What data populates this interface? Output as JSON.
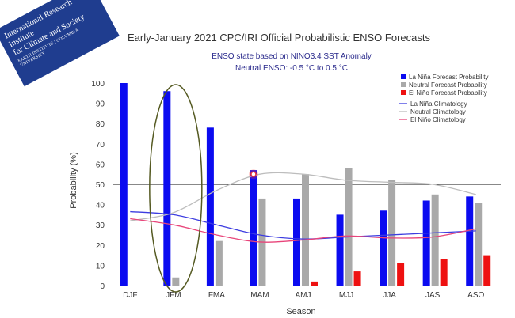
{
  "logo": {
    "line1": "International Research Institute",
    "line2": "for Climate and Society",
    "line3": "EARTH INSTITUTE | COLUMBIA UNIVERSITY"
  },
  "colors": {
    "la_nina": "#0b0bf0",
    "neutral": "#a9a9a9",
    "el_nino": "#ee1111",
    "la_nina_clim": "#3c3ce0",
    "neutral_clim": "#bdbdbd",
    "el_nino_clim": "#e8457a",
    "ellipse": "#555a22"
  },
  "chart_data": {
    "type": "bar",
    "title": "Early-January 2021 CPC/IRI Official Probabilistic ENSO Forecasts",
    "subtitle_1": "ENSO state based on NINO3.4 SST Anomaly",
    "subtitle_2": "Neutral ENSO: -0.5 °C to 0.5 °C",
    "xlabel": "Season",
    "ylabel": "Probability (%)",
    "ylim": [
      0,
      100
    ],
    "yticks": [
      0,
      10,
      20,
      30,
      40,
      50,
      60,
      70,
      80,
      90,
      100
    ],
    "reference_line": 50,
    "categories": [
      "DJF",
      "JFM",
      "FMA",
      "MAM",
      "AMJ",
      "MJJ",
      "JJA",
      "JAS",
      "ASO"
    ],
    "series": [
      {
        "name": "La Niña Forecast Probability",
        "values": [
          100,
          96,
          78,
          57,
          43,
          35,
          37,
          42,
          44
        ]
      },
      {
        "name": "Neutral Forecast Probability",
        "values": [
          0,
          4,
          22,
          43,
          55,
          58,
          52,
          45,
          41
        ]
      },
      {
        "name": "El Niño Forecast Probability",
        "values": [
          0,
          0,
          0,
          0,
          2,
          7,
          11,
          13,
          15
        ]
      }
    ],
    "climatology": [
      {
        "name": "La Niña Climatology",
        "values": [
          36.5,
          35,
          30,
          25,
          23,
          24,
          25,
          26,
          27
        ]
      },
      {
        "name": "Neutral Climatology",
        "values": [
          32,
          36,
          47,
          55,
          55,
          52,
          51,
          50,
          45
        ]
      },
      {
        "name": "El Niño Climatology",
        "values": [
          33,
          30,
          25,
          21.5,
          22.5,
          24.5,
          23.5,
          24,
          28
        ]
      }
    ],
    "legend_position": "top-right",
    "grid": false
  }
}
